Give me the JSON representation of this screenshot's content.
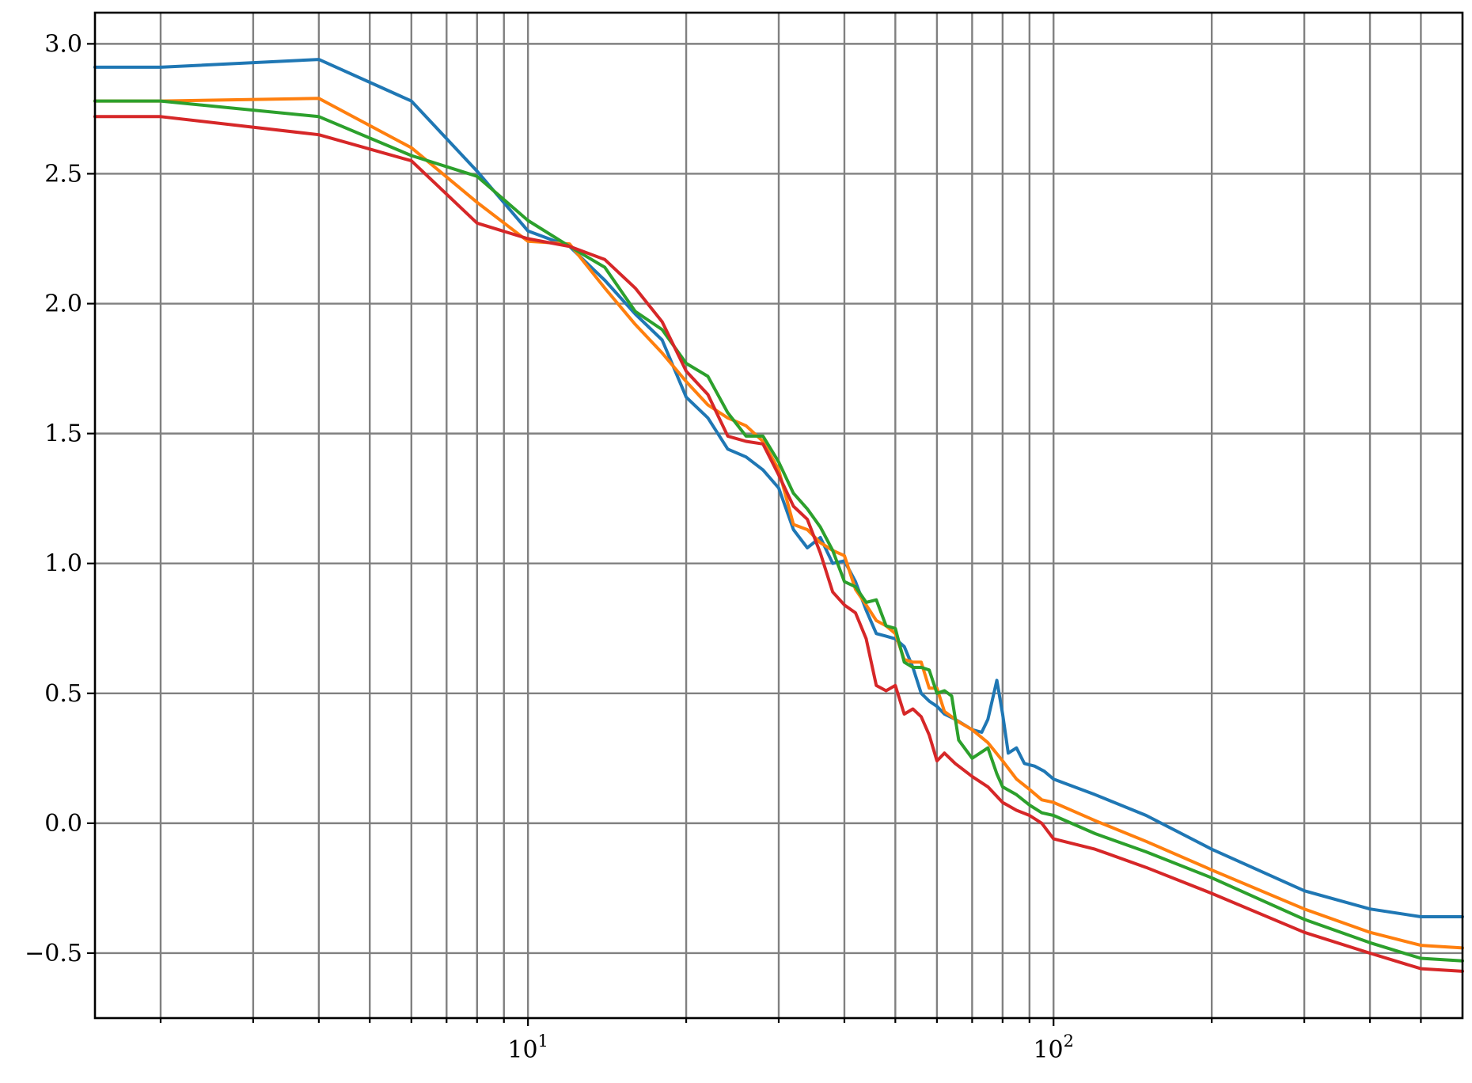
{
  "chart_data": {
    "type": "line",
    "title": "",
    "xlabel": "",
    "ylabel": "",
    "xscale": "log",
    "xlim": [
      1.5,
      600
    ],
    "ylim": [
      -0.75,
      3.12
    ],
    "grid": true,
    "x_ticks_major": [
      10,
      100
    ],
    "x_tick_labels": [
      {
        "base": "10",
        "exp": "1"
      },
      {
        "base": "10",
        "exp": "2"
      }
    ],
    "x_ticks_minor": [
      2,
      3,
      4,
      5,
      6,
      7,
      8,
      9,
      20,
      30,
      40,
      50,
      60,
      70,
      80,
      90,
      200,
      300,
      400,
      500
    ],
    "y_ticks": [
      -0.5,
      0.0,
      0.5,
      1.0,
      1.5,
      2.0,
      2.5,
      3.0
    ],
    "y_tick_labels": [
      "−0.5",
      "0.0",
      "0.5",
      "1.0",
      "1.5",
      "2.0",
      "2.5",
      "3.0"
    ],
    "series": [
      {
        "color": "#1f77b4",
        "points": [
          [
            1.5,
            2.91
          ],
          [
            2,
            2.91
          ],
          [
            4,
            2.94
          ],
          [
            6,
            2.78
          ],
          [
            8,
            2.51
          ],
          [
            10,
            2.28
          ],
          [
            12,
            2.22
          ],
          [
            14,
            2.09
          ],
          [
            16,
            1.96
          ],
          [
            18,
            1.86
          ],
          [
            20,
            1.64
          ],
          [
            22,
            1.56
          ],
          [
            24,
            1.44
          ],
          [
            26,
            1.41
          ],
          [
            28,
            1.36
          ],
          [
            30,
            1.29
          ],
          [
            32,
            1.13
          ],
          [
            34,
            1.06
          ],
          [
            36,
            1.1
          ],
          [
            38,
            1.0
          ],
          [
            40,
            1.01
          ],
          [
            42,
            0.93
          ],
          [
            44,
            0.82
          ],
          [
            46,
            0.73
          ],
          [
            48,
            0.72
          ],
          [
            50,
            0.71
          ],
          [
            52,
            0.68
          ],
          [
            54,
            0.6
          ],
          [
            56,
            0.5
          ],
          [
            58,
            0.47
          ],
          [
            60,
            0.45
          ],
          [
            62,
            0.42
          ],
          [
            65,
            0.4
          ],
          [
            70,
            0.36
          ],
          [
            73,
            0.35
          ],
          [
            75,
            0.4
          ],
          [
            78,
            0.55
          ],
          [
            80,
            0.42
          ],
          [
            82,
            0.27
          ],
          [
            85,
            0.29
          ],
          [
            88,
            0.23
          ],
          [
            92,
            0.22
          ],
          [
            96,
            0.2
          ],
          [
            100,
            0.17
          ],
          [
            120,
            0.11
          ],
          [
            150,
            0.03
          ],
          [
            200,
            -0.1
          ],
          [
            300,
            -0.26
          ],
          [
            400,
            -0.33
          ],
          [
            500,
            -0.36
          ],
          [
            600,
            -0.36
          ]
        ]
      },
      {
        "color": "#ff7f0e",
        "points": [
          [
            1.5,
            2.78
          ],
          [
            2,
            2.78
          ],
          [
            4,
            2.79
          ],
          [
            6,
            2.6
          ],
          [
            8,
            2.39
          ],
          [
            10,
            2.24
          ],
          [
            12,
            2.23
          ],
          [
            14,
            2.06
          ],
          [
            16,
            1.92
          ],
          [
            18,
            1.81
          ],
          [
            20,
            1.7
          ],
          [
            22,
            1.61
          ],
          [
            24,
            1.56
          ],
          [
            26,
            1.53
          ],
          [
            28,
            1.47
          ],
          [
            30,
            1.36
          ],
          [
            32,
            1.15
          ],
          [
            34,
            1.13
          ],
          [
            36,
            1.08
          ],
          [
            38,
            1.05
          ],
          [
            40,
            1.03
          ],
          [
            42,
            0.9
          ],
          [
            44,
            0.84
          ],
          [
            46,
            0.78
          ],
          [
            48,
            0.76
          ],
          [
            50,
            0.73
          ],
          [
            52,
            0.63
          ],
          [
            54,
            0.62
          ],
          [
            56,
            0.62
          ],
          [
            58,
            0.52
          ],
          [
            60,
            0.52
          ],
          [
            62,
            0.43
          ],
          [
            66,
            0.39
          ],
          [
            70,
            0.36
          ],
          [
            75,
            0.31
          ],
          [
            80,
            0.24
          ],
          [
            85,
            0.17
          ],
          [
            90,
            0.13
          ],
          [
            95,
            0.09
          ],
          [
            100,
            0.08
          ],
          [
            120,
            0.01
          ],
          [
            150,
            -0.07
          ],
          [
            200,
            -0.18
          ],
          [
            300,
            -0.33
          ],
          [
            400,
            -0.42
          ],
          [
            500,
            -0.47
          ],
          [
            600,
            -0.48
          ]
        ]
      },
      {
        "color": "#2ca02c",
        "points": [
          [
            1.5,
            2.78
          ],
          [
            2,
            2.78
          ],
          [
            4,
            2.72
          ],
          [
            6,
            2.57
          ],
          [
            8,
            2.49
          ],
          [
            10,
            2.32
          ],
          [
            12,
            2.22
          ],
          [
            14,
            2.14
          ],
          [
            16,
            1.97
          ],
          [
            18,
            1.9
          ],
          [
            20,
            1.77
          ],
          [
            22,
            1.72
          ],
          [
            24,
            1.58
          ],
          [
            26,
            1.49
          ],
          [
            28,
            1.49
          ],
          [
            30,
            1.39
          ],
          [
            32,
            1.27
          ],
          [
            34,
            1.21
          ],
          [
            36,
            1.14
          ],
          [
            38,
            1.05
          ],
          [
            40,
            0.93
          ],
          [
            42,
            0.91
          ],
          [
            44,
            0.85
          ],
          [
            46,
            0.86
          ],
          [
            48,
            0.76
          ],
          [
            50,
            0.75
          ],
          [
            52,
            0.62
          ],
          [
            54,
            0.6
          ],
          [
            56,
            0.6
          ],
          [
            58,
            0.59
          ],
          [
            60,
            0.5
          ],
          [
            62,
            0.51
          ],
          [
            64,
            0.49
          ],
          [
            66,
            0.32
          ],
          [
            70,
            0.25
          ],
          [
            75,
            0.29
          ],
          [
            78,
            0.19
          ],
          [
            80,
            0.14
          ],
          [
            85,
            0.11
          ],
          [
            90,
            0.07
          ],
          [
            95,
            0.04
          ],
          [
            100,
            0.03
          ],
          [
            120,
            -0.04
          ],
          [
            150,
            -0.11
          ],
          [
            200,
            -0.21
          ],
          [
            300,
            -0.37
          ],
          [
            400,
            -0.46
          ],
          [
            500,
            -0.52
          ],
          [
            600,
            -0.53
          ]
        ]
      },
      {
        "color": "#d62728",
        "points": [
          [
            1.5,
            2.72
          ],
          [
            2,
            2.72
          ],
          [
            4,
            2.65
          ],
          [
            6,
            2.55
          ],
          [
            8,
            2.31
          ],
          [
            10,
            2.25
          ],
          [
            12,
            2.22
          ],
          [
            14,
            2.17
          ],
          [
            16,
            2.06
          ],
          [
            18,
            1.93
          ],
          [
            20,
            1.74
          ],
          [
            22,
            1.65
          ],
          [
            24,
            1.49
          ],
          [
            26,
            1.47
          ],
          [
            28,
            1.46
          ],
          [
            30,
            1.34
          ],
          [
            32,
            1.22
          ],
          [
            34,
            1.17
          ],
          [
            36,
            1.04
          ],
          [
            38,
            0.89
          ],
          [
            40,
            0.84
          ],
          [
            42,
            0.81
          ],
          [
            44,
            0.71
          ],
          [
            46,
            0.53
          ],
          [
            48,
            0.51
          ],
          [
            50,
            0.53
          ],
          [
            52,
            0.42
          ],
          [
            54,
            0.44
          ],
          [
            56,
            0.41
          ],
          [
            58,
            0.34
          ],
          [
            60,
            0.24
          ],
          [
            62,
            0.27
          ],
          [
            65,
            0.23
          ],
          [
            70,
            0.18
          ],
          [
            75,
            0.14
          ],
          [
            80,
            0.08
          ],
          [
            85,
            0.05
          ],
          [
            90,
            0.03
          ],
          [
            95,
            0.0
          ],
          [
            100,
            -0.06
          ],
          [
            120,
            -0.1
          ],
          [
            150,
            -0.17
          ],
          [
            200,
            -0.27
          ],
          [
            300,
            -0.42
          ],
          [
            400,
            -0.5
          ],
          [
            500,
            -0.56
          ],
          [
            600,
            -0.57
          ]
        ]
      }
    ]
  }
}
